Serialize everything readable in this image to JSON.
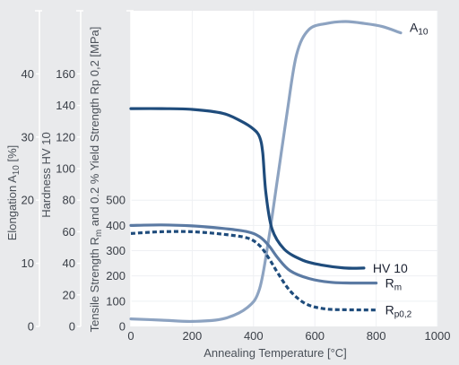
{
  "chart_data": {
    "type": "line",
    "xlabel": "Annealing Temperature [°C]",
    "x_axis": {
      "min": 0,
      "max": 1000,
      "ticks": [
        0,
        200,
        400,
        600,
        800,
        1000
      ]
    },
    "y_axes": [
      {
        "id": "elong",
        "label": "Elongation A",
        "label_sub": "10",
        "label_suffix": " [%]",
        "min": 0,
        "max": 50,
        "ticks": [
          0,
          10,
          20,
          30,
          40
        ]
      },
      {
        "id": "hard",
        "label": "Hardness HV 10",
        "label_sub": "",
        "label_suffix": "",
        "min": 0,
        "max": 200,
        "ticks": [
          0,
          20,
          40,
          60,
          80,
          100,
          120,
          140,
          160
        ]
      },
      {
        "id": "tens",
        "label": "Tensile Strength R",
        "label_sub": "m",
        "label_suffix": " and 0.2 % Yield Strength Rp 0,2 [MPa]",
        "min": 0,
        "max": 1250,
        "ticks": [
          0,
          100,
          200,
          300,
          400,
          500
        ]
      }
    ],
    "series": [
      {
        "name": "A",
        "name_sub": "10",
        "axis": "elong",
        "color": "#8da3c1",
        "dash": false,
        "points": [
          [
            0,
            1.2
          ],
          [
            100,
            1.0
          ],
          [
            200,
            0.8
          ],
          [
            300,
            1.2
          ],
          [
            380,
            3
          ],
          [
            420,
            6
          ],
          [
            450,
            14
          ],
          [
            480,
            24
          ],
          [
            510,
            34
          ],
          [
            540,
            43
          ],
          [
            580,
            47
          ],
          [
            640,
            48
          ],
          [
            700,
            48.3
          ],
          [
            760,
            48
          ],
          [
            820,
            47.5
          ],
          [
            880,
            46.5
          ]
        ]
      },
      {
        "name": "HV 10",
        "name_sub": "",
        "axis": "hard",
        "color": "#1f4c7c",
        "dash": false,
        "points": [
          [
            0,
            138
          ],
          [
            100,
            138
          ],
          [
            200,
            137.5
          ],
          [
            300,
            135
          ],
          [
            360,
            130
          ],
          [
            400,
            125
          ],
          [
            420,
            120
          ],
          [
            430,
            110
          ],
          [
            440,
            85
          ],
          [
            460,
            62
          ],
          [
            500,
            49
          ],
          [
            560,
            42
          ],
          [
            620,
            39
          ],
          [
            700,
            37
          ],
          [
            760,
            37
          ]
        ]
      },
      {
        "name": "R",
        "name_sub": "m",
        "axis": "tens",
        "color": "#5b7aa3",
        "dash": false,
        "points": [
          [
            0,
            400
          ],
          [
            100,
            402
          ],
          [
            200,
            398
          ],
          [
            300,
            388
          ],
          [
            380,
            375
          ],
          [
            420,
            355
          ],
          [
            450,
            320
          ],
          [
            480,
            270
          ],
          [
            520,
            220
          ],
          [
            580,
            190
          ],
          [
            650,
            175
          ],
          [
            720,
            172
          ],
          [
            800,
            172
          ]
        ]
      },
      {
        "name": "R",
        "name_sub": "p0,2",
        "axis": "tens",
        "color": "#1f4c7c",
        "dash": true,
        "points": [
          [
            0,
            368
          ],
          [
            100,
            375
          ],
          [
            200,
            375
          ],
          [
            300,
            365
          ],
          [
            380,
            350
          ],
          [
            420,
            320
          ],
          [
            450,
            270
          ],
          [
            480,
            210
          ],
          [
            520,
            140
          ],
          [
            570,
            90
          ],
          [
            630,
            70
          ],
          [
            700,
            66
          ],
          [
            800,
            65
          ]
        ]
      }
    ]
  }
}
